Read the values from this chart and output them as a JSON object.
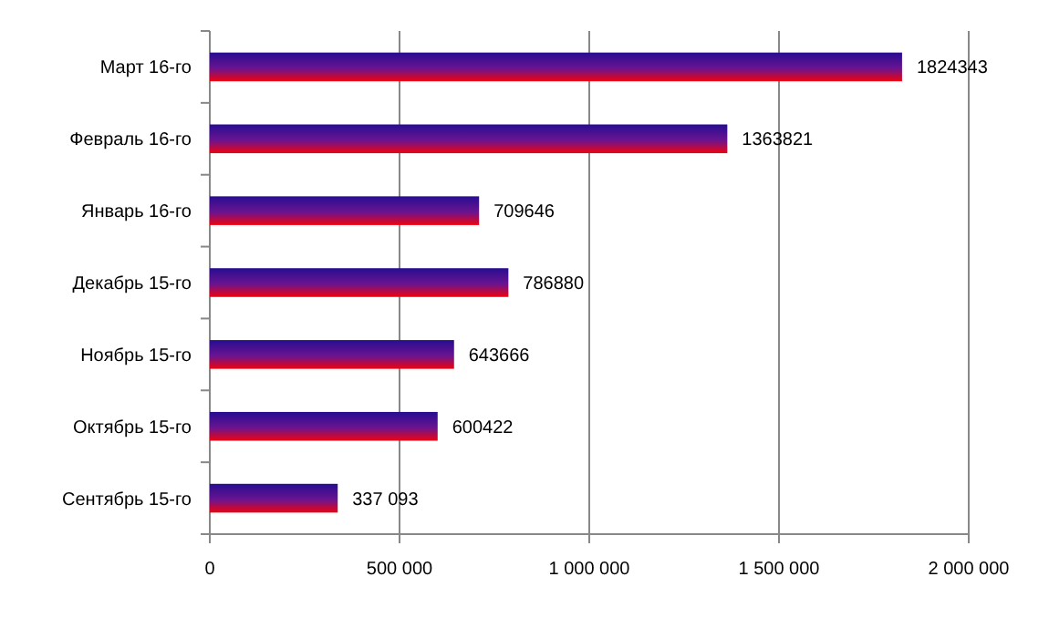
{
  "chart_data": {
    "type": "bar",
    "orientation": "horizontal",
    "categories": [
      "Март 16-го",
      "Февраль 16-го",
      "Январь 16-го",
      "Декабрь 15-го",
      "Ноябрь 15-го",
      "Октябрь 15-го",
      "Сентябрь 15-го"
    ],
    "series": [
      {
        "color": "#6a1490",
        "values": [
          1824343,
          1363821,
          709646,
          786880,
          643666,
          600422,
          337093
        ],
        "value_labels": [
          "1824343",
          "1363821",
          "709646",
          "786880",
          "643666",
          "600422",
          "337 093"
        ]
      }
    ],
    "xlim": [
      0,
      2000000
    ],
    "xticks": [
      {
        "value": 0,
        "label": "0"
      },
      {
        "value": 500000,
        "label": "500 000"
      },
      {
        "value": 1000000,
        "label": "1 000 000"
      },
      {
        "value": 1500000,
        "label": "1 500 000"
      },
      {
        "value": 2000000,
        "label": "2 000 000"
      }
    ],
    "grid": "x"
  }
}
